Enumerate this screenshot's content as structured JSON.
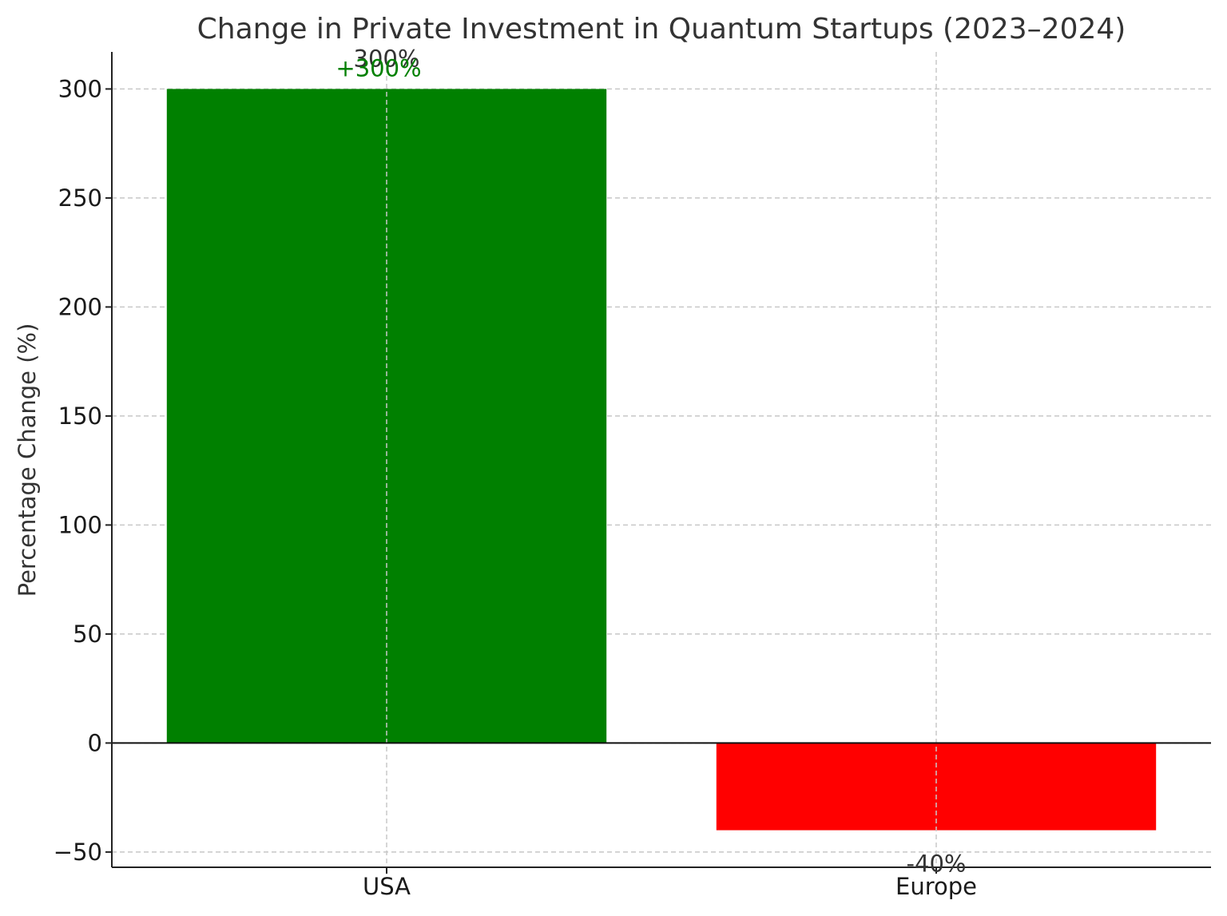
{
  "chart_data": {
    "type": "bar",
    "title": "Change in Private Investment in Quantum Startups (2023–2024)",
    "xlabel": "",
    "ylabel": "Percentage Change (%)",
    "categories": [
      "USA",
      "Europe"
    ],
    "values": [
      300,
      -40
    ],
    "bar_colors": [
      "#008000",
      "#ff0000"
    ],
    "ylim": [
      -57,
      317
    ],
    "yticks": [
      -50,
      0,
      50,
      100,
      150,
      200,
      250,
      300
    ],
    "ytick_labels": [
      "−50",
      "0",
      "50",
      "100",
      "150",
      "200",
      "250",
      "300"
    ],
    "grid": true,
    "data_labels": [
      {
        "text": "300%",
        "category_index": 0,
        "color": "#333333"
      },
      {
        "text": "+300%",
        "category_index": 0,
        "color": "#008000"
      },
      {
        "text": "-40%",
        "category_index": 1,
        "color": "#333333"
      }
    ]
  }
}
